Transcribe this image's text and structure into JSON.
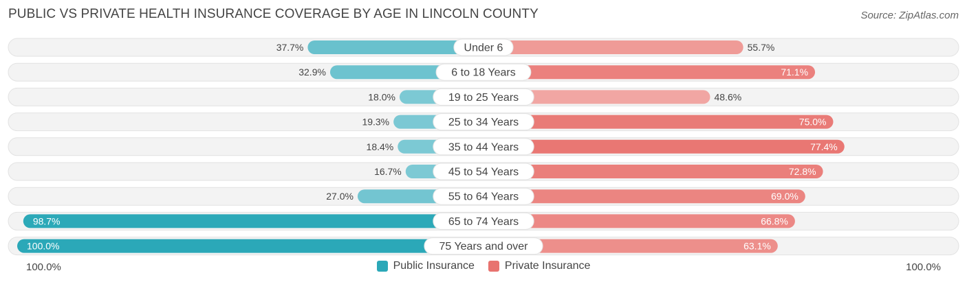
{
  "title": "PUBLIC VS PRIVATE HEALTH INSURANCE COVERAGE BY AGE IN LINCOLN COUNTY",
  "source": "Source: ZipAtlas.com",
  "axis": {
    "left_label": "100.0%",
    "right_label": "100.0%"
  },
  "legend": {
    "public": "Public Insurance",
    "private": "Private Insurance"
  },
  "colors": {
    "public_dark": "#2ba8b8",
    "public_light": "#7fcad5",
    "private_dark": "#e8736f",
    "private_light": "#f2aca9",
    "track": "#efefef"
  },
  "chart_data": {
    "type": "bar",
    "orientation": "horizontal-diverging",
    "categories": [
      "Under 6",
      "6 to 18 Years",
      "19 to 25 Years",
      "25 to 34 Years",
      "35 to 44 Years",
      "45 to 54 Years",
      "55 to 64 Years",
      "65 to 74 Years",
      "75 Years and over"
    ],
    "series": [
      {
        "name": "Public Insurance",
        "values": [
          37.7,
          32.9,
          18.0,
          19.3,
          18.4,
          16.7,
          27.0,
          98.7,
          100.0
        ],
        "labels": [
          "37.7%",
          "32.9%",
          "18.0%",
          "19.3%",
          "18.4%",
          "16.7%",
          "27.0%",
          "98.7%",
          "100.0%"
        ]
      },
      {
        "name": "Private Insurance",
        "values": [
          55.7,
          71.1,
          48.6,
          75.0,
          77.4,
          72.8,
          69.0,
          66.8,
          63.1
        ],
        "labels": [
          "55.7%",
          "71.1%",
          "48.6%",
          "75.0%",
          "77.4%",
          "72.8%",
          "69.0%",
          "66.8%",
          "63.1%"
        ]
      }
    ],
    "xlim": [
      -100,
      100
    ]
  }
}
